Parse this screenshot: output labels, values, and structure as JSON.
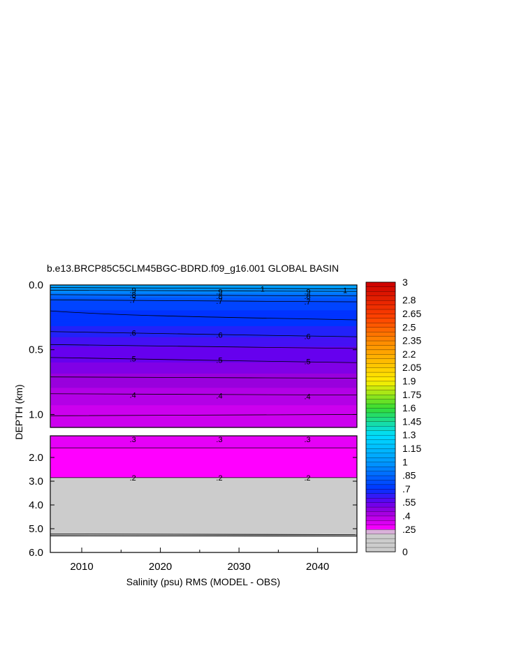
{
  "chart_data": {
    "type": "heatmap",
    "title": "b.e13.BRCP85C5CLM45BGC-BDRD.f09_g16.001 GLOBAL BASIN",
    "xlabel": "Salinity (psu) RMS (MODEL - OBS)",
    "ylabel": "DEPTH (km)",
    "xlim": [
      2006,
      2045
    ],
    "x_ticks": [
      "2010",
      "2020",
      "2030",
      "2040"
    ],
    "upper_panel": {
      "ylim": [
        0.0,
        1.1
      ],
      "y_ticks": [
        "0.0",
        "0.5",
        "1.0"
      ]
    },
    "lower_panel": {
      "ylim": [
        1.1,
        6.0
      ],
      "y_ticks": [
        "2.0",
        "3.0",
        "4.0",
        "5.0",
        "6.0"
      ]
    },
    "contour_labels": [
      {
        "label": "1",
        "x": 2033,
        "depth": 0.03
      },
      {
        "label": "1",
        "x": 2043.5,
        "depth": 0.04
      },
      {
        "label": ".9",
        "x": 2016.5,
        "depth": 0.04
      },
      {
        "label": ".9",
        "x": 2027.5,
        "depth": 0.05
      },
      {
        "label": ".9",
        "x": 2038.7,
        "depth": 0.05
      },
      {
        "label": ".8",
        "x": 2016.5,
        "depth": 0.075
      },
      {
        "label": ".8",
        "x": 2027.5,
        "depth": 0.085
      },
      {
        "label": ".8",
        "x": 2038.7,
        "depth": 0.085
      },
      {
        "label": ".7",
        "x": 2016.5,
        "depth": 0.115
      },
      {
        "label": ".7",
        "x": 2027.5,
        "depth": 0.125
      },
      {
        "label": ".7",
        "x": 2038.7,
        "depth": 0.13
      },
      {
        "label": ".6",
        "x": 2016.5,
        "depth": 0.37
      },
      {
        "label": ".6",
        "x": 2027.5,
        "depth": 0.385
      },
      {
        "label": ".6",
        "x": 2038.7,
        "depth": 0.395
      },
      {
        "label": ".5",
        "x": 2016.5,
        "depth": 0.57
      },
      {
        "label": ".5",
        "x": 2027.5,
        "depth": 0.58
      },
      {
        "label": ".5",
        "x": 2038.7,
        "depth": 0.59
      },
      {
        "label": ".4",
        "x": 2016.5,
        "depth": 0.85
      },
      {
        "label": ".4",
        "x": 2027.5,
        "depth": 0.855
      },
      {
        "label": ".4",
        "x": 2038.7,
        "depth": 0.86
      },
      {
        "label": ".3",
        "x": 2016.5,
        "depth": 1.25
      },
      {
        "label": ".3",
        "x": 2027.5,
        "depth": 1.25
      },
      {
        "label": ".3",
        "x": 2038.7,
        "depth": 1.25
      },
      {
        "label": ".2",
        "x": 2016.5,
        "depth": 2.85
      },
      {
        "label": ".2",
        "x": 2027.5,
        "depth": 2.85
      },
      {
        "label": ".2",
        "x": 2038.7,
        "depth": 2.85
      }
    ],
    "colorbar": {
      "levels": [
        0,
        0.05,
        0.1,
        0.15,
        0.2,
        0.25,
        0.3,
        0.35,
        0.4,
        0.45,
        0.5,
        0.55,
        0.6,
        0.65,
        0.7,
        0.75,
        0.8,
        0.85,
        0.9,
        0.95,
        1.0,
        1.05,
        1.1,
        1.15,
        1.2,
        1.25,
        1.3,
        1.35,
        1.4,
        1.45,
        1.5,
        1.55,
        1.6,
        1.65,
        1.7,
        1.75,
        1.8,
        1.85,
        1.9,
        1.95,
        2.0,
        2.05,
        2.1,
        2.15,
        2.2,
        2.25,
        2.3,
        2.35,
        2.4,
        2.45,
        2.5,
        2.55,
        2.6,
        2.65,
        2.7,
        2.75,
        2.8,
        2.85,
        2.9,
        2.95,
        3.0
      ],
      "labels": [
        "0",
        ".25",
        ".4",
        ".55",
        ".7",
        ".85",
        "1",
        "1.15",
        "1.3",
        "1.45",
        "1.6",
        "1.75",
        "1.9",
        "2.05",
        "2.2",
        "2.35",
        "2.5",
        "2.65",
        "2.8",
        "3"
      ],
      "label_values": [
        0,
        0.25,
        0.4,
        0.55,
        0.7,
        0.85,
        1.0,
        1.15,
        1.3,
        1.45,
        1.6,
        1.75,
        1.9,
        2.05,
        2.2,
        2.35,
        2.5,
        2.65,
        2.8,
        3.0
      ]
    },
    "colors": {
      "gray": "#d3d3d3",
      "magenta": "#ff00ff",
      "purple": "#9900dd",
      "violet": "#6600ee",
      "blue": "#0033ff",
      "cyan": "#00ddff",
      "green": "#33dd33",
      "yellow": "#ffee00",
      "orange": "#ff8800",
      "red": "#cc0000"
    }
  }
}
